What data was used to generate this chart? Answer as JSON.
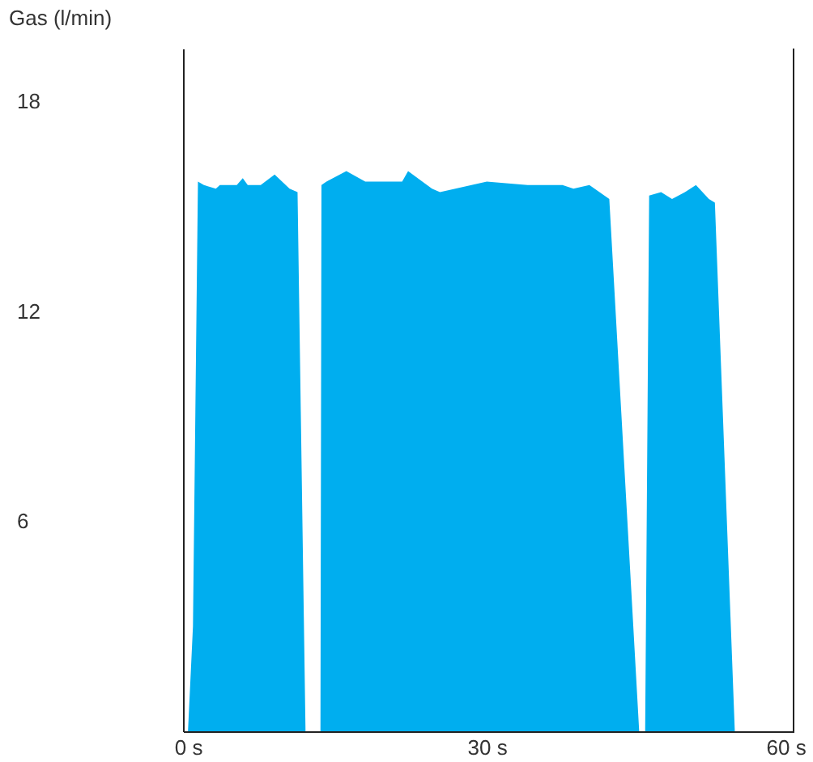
{
  "chart_data": {
    "type": "area",
    "ylabel": "Gas (l/min)",
    "color": "#00aeef",
    "x": [
      0,
      0.5,
      1.0,
      1.6,
      2.8,
      3.2,
      4.9,
      5.5,
      6.0,
      7.3,
      8.7,
      10.2,
      11.0,
      11.8,
      13.3,
      13.4,
      13.9,
      15.9,
      17.8,
      21.5,
      22.1,
      24.5,
      25.3,
      30,
      34.1,
      37.6,
      38.7,
      40.3,
      42.3,
      45.3,
      45.9,
      46.3,
      47.5,
      48.6,
      49.9,
      51.0,
      52.3,
      52.9,
      54.9
    ],
    "values": [
      0,
      3,
      15.7,
      15.6,
      15.5,
      15.6,
      15.6,
      15.8,
      15.6,
      15.6,
      15.9,
      15.5,
      15.4,
      0,
      0,
      15.6,
      15.7,
      16.0,
      15.7,
      15.7,
      16.0,
      15.5,
      15.4,
      15.7,
      15.6,
      15.6,
      15.5,
      15.6,
      15.2,
      0,
      0,
      15.3,
      15.4,
      15.2,
      15.4,
      15.6,
      15.2,
      15.1,
      0
    ],
    "xlim": [
      -0.5,
      60.8
    ],
    "xticks": [
      {
        "value": 0,
        "label": "0 s"
      },
      {
        "value": 30,
        "label": "30 s"
      },
      {
        "value": 60,
        "label": "60 s"
      }
    ],
    "ylim": [
      0,
      19.5
    ],
    "yticks": [
      6,
      12,
      18
    ]
  }
}
